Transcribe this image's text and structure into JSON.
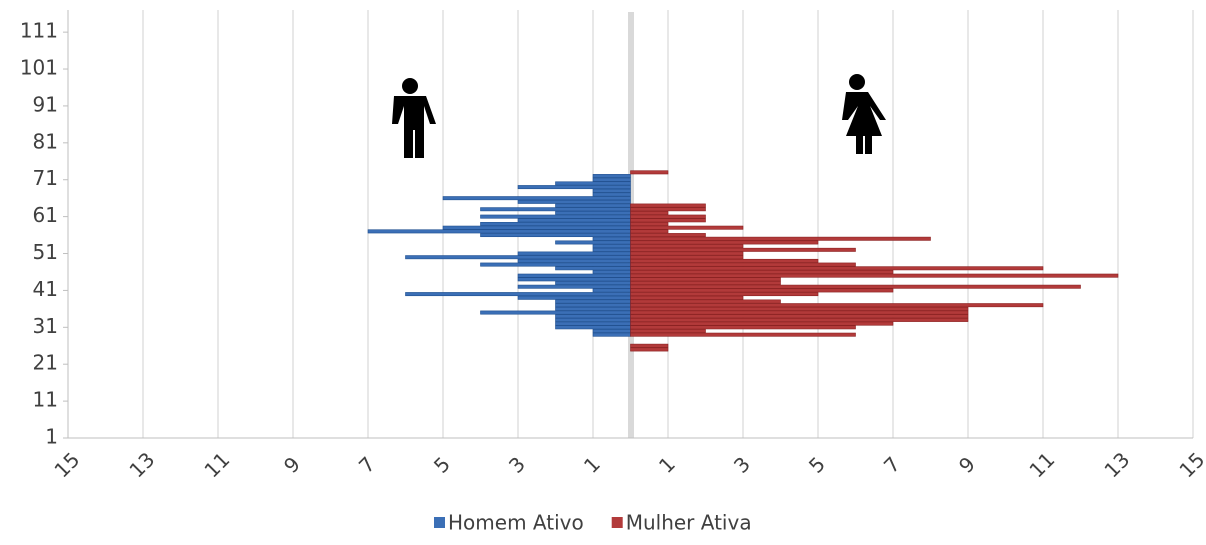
{
  "chart_data": {
    "type": "bar",
    "orientation": "horizontal",
    "categories": [
      25,
      26,
      27,
      28,
      29,
      30,
      31,
      32,
      33,
      34,
      35,
      36,
      37,
      38,
      39,
      40,
      41,
      42,
      43,
      44,
      45,
      46,
      47,
      48,
      49,
      50,
      51,
      52,
      53,
      54,
      55,
      56,
      57,
      58,
      59,
      60,
      61,
      62,
      63,
      64,
      65,
      66,
      67,
      68,
      69,
      70,
      71,
      72,
      73,
      74
    ],
    "series": [
      {
        "name": "Homem Ativo",
        "color": "#3b6fb6",
        "values": [
          0,
          0,
          0,
          0,
          -1,
          -1,
          -2,
          -2,
          -2,
          -2,
          -4,
          -2,
          -2,
          -2,
          -3,
          -6,
          -1,
          -3,
          -2,
          -3,
          -3,
          -1,
          -2,
          -4,
          -3,
          -6,
          -3,
          -1,
          -1,
          -2,
          -1,
          -4,
          -7,
          -5,
          -4,
          -3,
          -4,
          -2,
          -4,
          -2,
          -3,
          -5,
          -1,
          -1,
          -3,
          -2,
          -1,
          -1,
          0,
          0
        ]
      },
      {
        "name": "Mulher Ativa",
        "color": "#b23a3a",
        "values": [
          1,
          1,
          0,
          0,
          6,
          2,
          6,
          7,
          9,
          9,
          9,
          9,
          11,
          4,
          3,
          5,
          7,
          12,
          4,
          4,
          13,
          7,
          11,
          6,
          5,
          3,
          3,
          6,
          3,
          5,
          8,
          2,
          1,
          3,
          1,
          2,
          2,
          1,
          2,
          2,
          0,
          0,
          0,
          0,
          0,
          0,
          0,
          0,
          1,
          0
        ]
      }
    ],
    "ylim": [
      1,
      117
    ],
    "yticks": [
      1,
      11,
      21,
      31,
      41,
      51,
      61,
      71,
      81,
      91,
      101,
      111
    ],
    "xlim": [
      -15,
      15
    ],
    "xticks": [
      {
        "value": -15,
        "label": "15"
      },
      {
        "value": -13,
        "label": "13"
      },
      {
        "value": -11,
        "label": "11"
      },
      {
        "value": -9,
        "label": "9"
      },
      {
        "value": -7,
        "label": "7"
      },
      {
        "value": -5,
        "label": "5"
      },
      {
        "value": -3,
        "label": "3"
      },
      {
        "value": -1,
        "label": "1"
      },
      1,
      3,
      5,
      7,
      9,
      11,
      13,
      15
    ],
    "grid": true,
    "legend": "bottom"
  }
}
